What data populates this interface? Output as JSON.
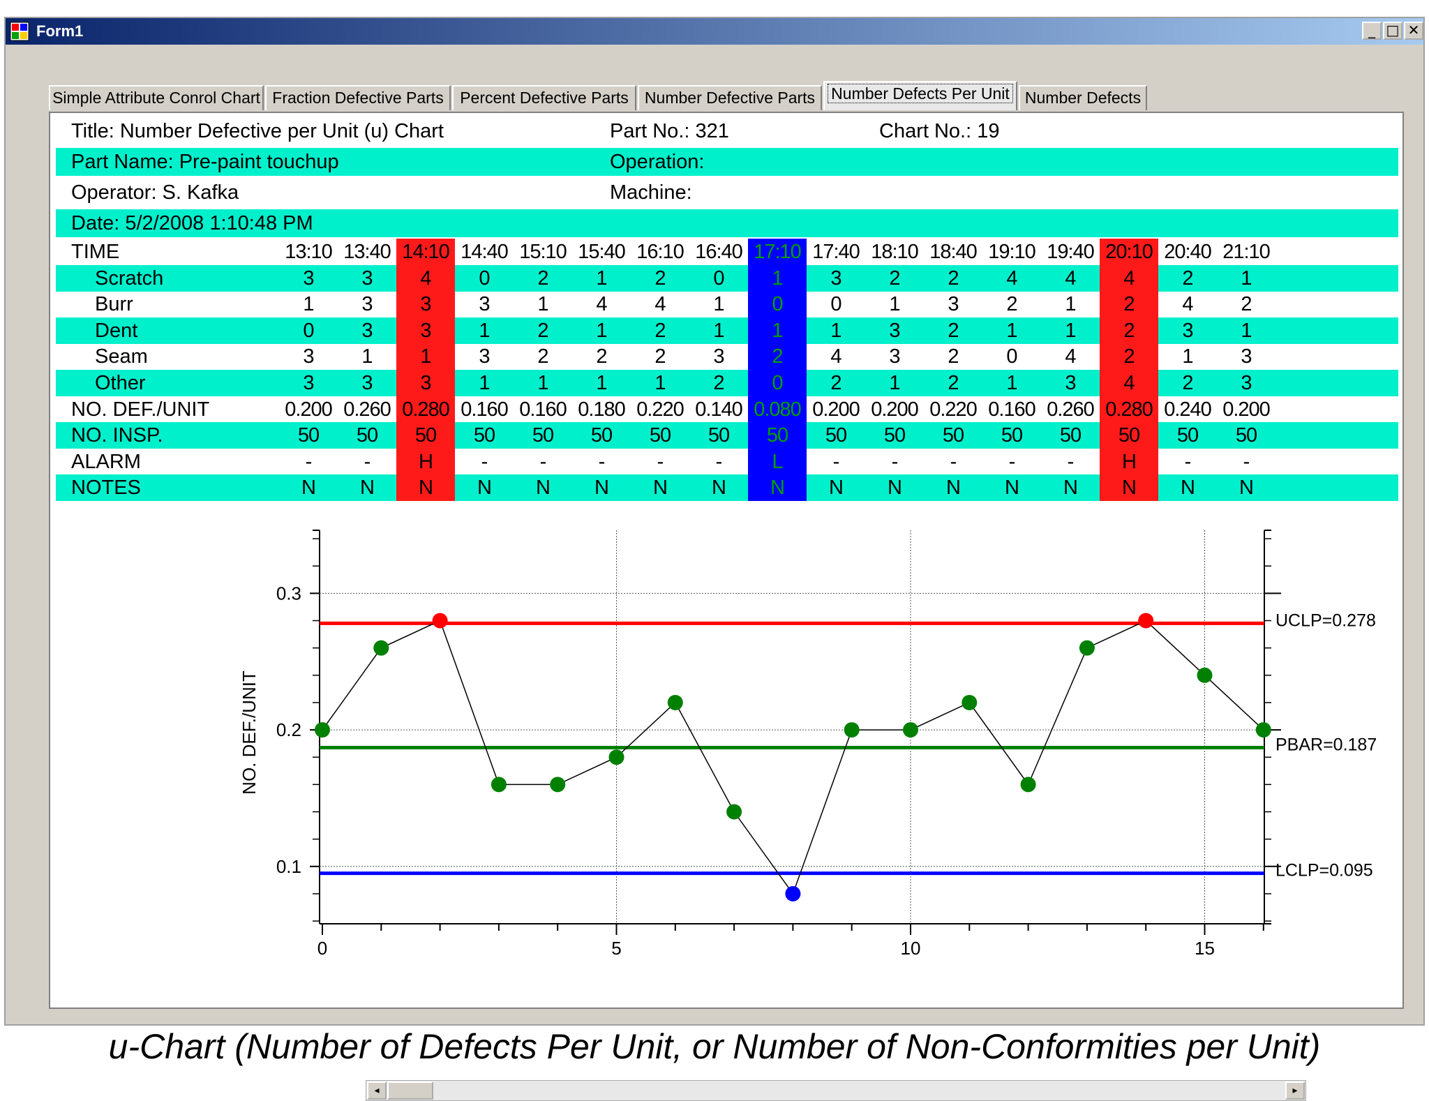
{
  "window": {
    "title": "Form1",
    "minimize_glyph": "_",
    "maximize_glyph": "□",
    "close_glyph": "✕"
  },
  "tabs": [
    {
      "label": "Simple Attribute Conrol Chart",
      "active": false
    },
    {
      "label": "Fraction Defective Parts",
      "active": false
    },
    {
      "label": "Percent Defective Parts",
      "active": false
    },
    {
      "label": "Number Defective Parts",
      "active": false
    },
    {
      "label": "Number Defects Per Unit",
      "active": true
    },
    {
      "label": "Number Defects",
      "active": false
    }
  ],
  "header": {
    "title": "Title: Number Defective per Unit (u) Chart",
    "part_no": "Part No.: 321",
    "chart_no": "Chart No.: 19",
    "part_name": "Part Name: Pre-paint touchup",
    "operation": "Operation:",
    "operator": "Operator: S. Kafka",
    "machine": "Machine:",
    "date": "Date: 5/2/2008 1:10:48 PM"
  },
  "table": {
    "time_label": "TIME",
    "times": [
      "13:10",
      "13:40",
      "14:10",
      "14:40",
      "15:10",
      "15:40",
      "16:10",
      "16:40",
      "17:10",
      "17:40",
      "18:10",
      "18:40",
      "19:10",
      "19:40",
      "20:10",
      "20:40",
      "21:10"
    ],
    "status": [
      "",
      "",
      "H",
      "",
      "",
      "",
      "",
      "",
      "L",
      "",
      "",
      "",
      "",
      "",
      "H",
      "",
      ""
    ],
    "rows": [
      {
        "label": "Scratch",
        "values": [
          "3",
          "3",
          "4",
          "0",
          "2",
          "1",
          "2",
          "0",
          "1",
          "3",
          "2",
          "2",
          "4",
          "4",
          "4",
          "2",
          "1"
        ]
      },
      {
        "label": "Burr",
        "values": [
          "1",
          "3",
          "3",
          "3",
          "1",
          "4",
          "4",
          "1",
          "0",
          "0",
          "1",
          "3",
          "2",
          "1",
          "2",
          "4",
          "2"
        ]
      },
      {
        "label": "Dent",
        "values": [
          "0",
          "3",
          "3",
          "1",
          "2",
          "1",
          "2",
          "1",
          "1",
          "1",
          "3",
          "2",
          "1",
          "1",
          "2",
          "3",
          "1"
        ]
      },
      {
        "label": "Seam",
        "values": [
          "3",
          "1",
          "1",
          "3",
          "2",
          "2",
          "2",
          "3",
          "2",
          "4",
          "3",
          "2",
          "0",
          "4",
          "2",
          "1",
          "3"
        ]
      },
      {
        "label": "Other",
        "values": [
          "3",
          "3",
          "3",
          "1",
          "1",
          "1",
          "1",
          "2",
          "0",
          "2",
          "1",
          "2",
          "1",
          "3",
          "4",
          "2",
          "3"
        ]
      }
    ],
    "def_unit_label": "NO. DEF./UNIT",
    "def_unit": [
      "0.200",
      "0.260",
      "0.280",
      "0.160",
      "0.160",
      "0.180",
      "0.220",
      "0.140",
      "0.080",
      "0.200",
      "0.200",
      "0.220",
      "0.160",
      "0.260",
      "0.280",
      "0.240",
      "0.200"
    ],
    "insp_label": "NO. INSP.",
    "insp": [
      "50",
      "50",
      "50",
      "50",
      "50",
      "50",
      "50",
      "50",
      "50",
      "50",
      "50",
      "50",
      "50",
      "50",
      "50",
      "50",
      "50"
    ],
    "alarm_label": "ALARM",
    "alarm": [
      "-",
      "-",
      "H",
      "-",
      "-",
      "-",
      "-",
      "-",
      "L",
      "-",
      "-",
      "-",
      "-",
      "-",
      "H",
      "-",
      "-"
    ],
    "notes_label": "NOTES",
    "notes": [
      "N",
      "N",
      "N",
      "N",
      "N",
      "N",
      "N",
      "N",
      "N",
      "N",
      "N",
      "N",
      "N",
      "N",
      "N",
      "N",
      "N"
    ]
  },
  "chart_data": {
    "type": "line",
    "ylabel": "NO. DEF./UNIT",
    "xlabel": "",
    "x": [
      0,
      1,
      2,
      3,
      4,
      5,
      6,
      7,
      8,
      9,
      10,
      11,
      12,
      13,
      14,
      15,
      16
    ],
    "values": [
      0.2,
      0.26,
      0.28,
      0.16,
      0.16,
      0.18,
      0.22,
      0.14,
      0.08,
      0.2,
      0.2,
      0.22,
      0.16,
      0.26,
      0.28,
      0.24,
      0.2
    ],
    "xlim": [
      0,
      16.2
    ],
    "ylim": [
      0.058,
      0.338
    ],
    "x_ticks": [
      0,
      5,
      10,
      15
    ],
    "y_ticks": [
      0.1,
      0.2,
      0.3
    ],
    "x_tick_labels": [
      "0",
      "5",
      "10",
      "15"
    ],
    "y_tick_labels": [
      "0.1",
      "0.2",
      "0.3"
    ],
    "limits": [
      {
        "label": "UCLP=0.278",
        "value": 0.278,
        "color": "#ff0000"
      },
      {
        "label": "PBAR=0.187",
        "value": 0.187,
        "color": "#008000"
      },
      {
        "label": "LCLP=0.095",
        "value": 0.095,
        "color": "#0000ff"
      }
    ],
    "point_color": "#008000",
    "high_color": "#ff0000",
    "low_color": "#0000ff",
    "grid": true
  },
  "caption": "u-Chart (Number of Defects Per Unit, or Number of Non-Conformities per Unit)"
}
